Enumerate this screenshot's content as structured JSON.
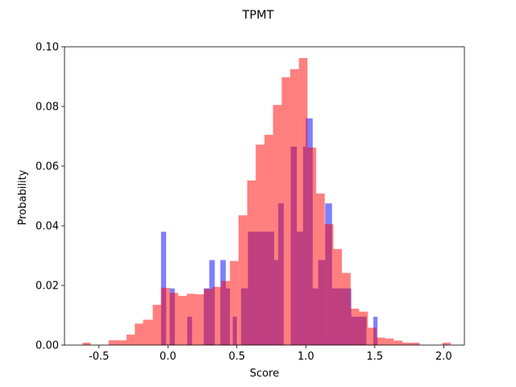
{
  "chart_data": {
    "type": "bar",
    "subtype": "overlaid-histogram",
    "title": "TPMT",
    "xlabel": "Score",
    "ylabel": "Probability",
    "xlim": [
      -0.75,
      2.15
    ],
    "ylim": [
      0,
      0.1
    ],
    "xticks": [
      "-0.5",
      "0.0",
      "0.5",
      "1.0",
      "1.5",
      "2.0"
    ],
    "yticks": [
      "0.00",
      "0.02",
      "0.04",
      "0.06",
      "0.08",
      "0.10"
    ],
    "grid": false,
    "legend": "none",
    "series": [
      {
        "color": "#0000ff",
        "opacity": 0.5,
        "bins": [
          {
            "x0": -0.05,
            "x1": -0.013,
            "y": 0.038
          },
          {
            "x0": 0.013,
            "x1": 0.05,
            "y": 0.019
          },
          {
            "x0": 0.14,
            "x1": 0.175,
            "y": 0.0095
          },
          {
            "x0": 0.26,
            "x1": 0.3,
            "y": 0.019
          },
          {
            "x0": 0.3,
            "x1": 0.34,
            "y": 0.0285
          },
          {
            "x0": 0.38,
            "x1": 0.42,
            "y": 0.0285
          },
          {
            "x0": 0.42,
            "x1": 0.45,
            "y": 0.019
          },
          {
            "x0": 0.47,
            "x1": 0.5,
            "y": 0.0095
          },
          {
            "x0": 0.53,
            "x1": 0.58,
            "y": 0.019
          },
          {
            "x0": 0.58,
            "x1": 0.77,
            "y": 0.038
          },
          {
            "x0": 0.77,
            "x1": 0.8,
            "y": 0.0285
          },
          {
            "x0": 0.8,
            "x1": 0.84,
            "y": 0.0475
          },
          {
            "x0": 0.89,
            "x1": 0.935,
            "y": 0.0665
          },
          {
            "x0": 0.935,
            "x1": 0.98,
            "y": 0.038
          },
          {
            "x0": 0.98,
            "x1": 1.0,
            "y": 0.0665
          },
          {
            "x0": 1.0,
            "x1": 1.05,
            "y": 0.076
          },
          {
            "x0": 1.05,
            "x1": 1.09,
            "y": 0.019
          },
          {
            "x0": 1.09,
            "x1": 1.14,
            "y": 0.0285
          },
          {
            "x0": 1.14,
            "x1": 1.19,
            "y": 0.0475
          },
          {
            "x0": 1.19,
            "x1": 1.33,
            "y": 0.019
          },
          {
            "x0": 1.33,
            "x1": 1.37,
            "y": 0.0095
          },
          {
            "x0": 1.37,
            "x1": 1.44,
            "y": 0.0095
          },
          {
            "x0": 1.49,
            "x1": 1.52,
            "y": 0.0095
          }
        ]
      },
      {
        "color": "#ff0000",
        "opacity": 0.5,
        "bins": [
          {
            "x0": -0.62,
            "x1": -0.56,
            "y": 0.0008
          },
          {
            "x0": -0.43,
            "x1": -0.3,
            "y": 0.0016
          },
          {
            "x0": -0.3,
            "x1": -0.24,
            "y": 0.0035
          },
          {
            "x0": -0.24,
            "x1": -0.18,
            "y": 0.0072
          },
          {
            "x0": -0.18,
            "x1": -0.11,
            "y": 0.0085
          },
          {
            "x0": -0.11,
            "x1": -0.05,
            "y": 0.0135
          },
          {
            "x0": -0.05,
            "x1": 0.013,
            "y": 0.0192
          },
          {
            "x0": 0.013,
            "x1": 0.075,
            "y": 0.0175
          },
          {
            "x0": 0.075,
            "x1": 0.137,
            "y": 0.0165
          },
          {
            "x0": 0.137,
            "x1": 0.2,
            "y": 0.0172
          },
          {
            "x0": 0.2,
            "x1": 0.262,
            "y": 0.017
          },
          {
            "x0": 0.262,
            "x1": 0.325,
            "y": 0.0188
          },
          {
            "x0": 0.325,
            "x1": 0.387,
            "y": 0.0195
          },
          {
            "x0": 0.387,
            "x1": 0.45,
            "y": 0.0215
          },
          {
            "x0": 0.45,
            "x1": 0.512,
            "y": 0.0282
          },
          {
            "x0": 0.512,
            "x1": 0.575,
            "y": 0.0435
          },
          {
            "x0": 0.575,
            "x1": 0.637,
            "y": 0.0552
          },
          {
            "x0": 0.637,
            "x1": 0.7,
            "y": 0.0672
          },
          {
            "x0": 0.7,
            "x1": 0.762,
            "y": 0.0705
          },
          {
            "x0": 0.762,
            "x1": 0.825,
            "y": 0.0805
          },
          {
            "x0": 0.825,
            "x1": 0.887,
            "y": 0.0898
          },
          {
            "x0": 0.887,
            "x1": 0.95,
            "y": 0.0925
          },
          {
            "x0": 0.95,
            "x1": 1.012,
            "y": 0.0962
          },
          {
            "x0": 1.012,
            "x1": 1.075,
            "y": 0.0662
          },
          {
            "x0": 1.075,
            "x1": 1.137,
            "y": 0.0508
          },
          {
            "x0": 1.137,
            "x1": 1.2,
            "y": 0.0405
          },
          {
            "x0": 1.2,
            "x1": 1.262,
            "y": 0.0322
          },
          {
            "x0": 1.262,
            "x1": 1.325,
            "y": 0.0242
          },
          {
            "x0": 1.325,
            "x1": 1.387,
            "y": 0.0122
          },
          {
            "x0": 1.387,
            "x1": 1.45,
            "y": 0.0112
          },
          {
            "x0": 1.45,
            "x1": 1.512,
            "y": 0.0058
          },
          {
            "x0": 1.512,
            "x1": 1.575,
            "y": 0.0025
          },
          {
            "x0": 1.575,
            "x1": 1.637,
            "y": 0.0022
          },
          {
            "x0": 1.637,
            "x1": 1.7,
            "y": 0.0015
          },
          {
            "x0": 1.7,
            "x1": 1.762,
            "y": 0.0008
          },
          {
            "x0": 1.762,
            "x1": 1.825,
            "y": 0.0008
          },
          {
            "x0": 1.99,
            "x1": 2.05,
            "y": 0.0008
          }
        ]
      }
    ]
  }
}
